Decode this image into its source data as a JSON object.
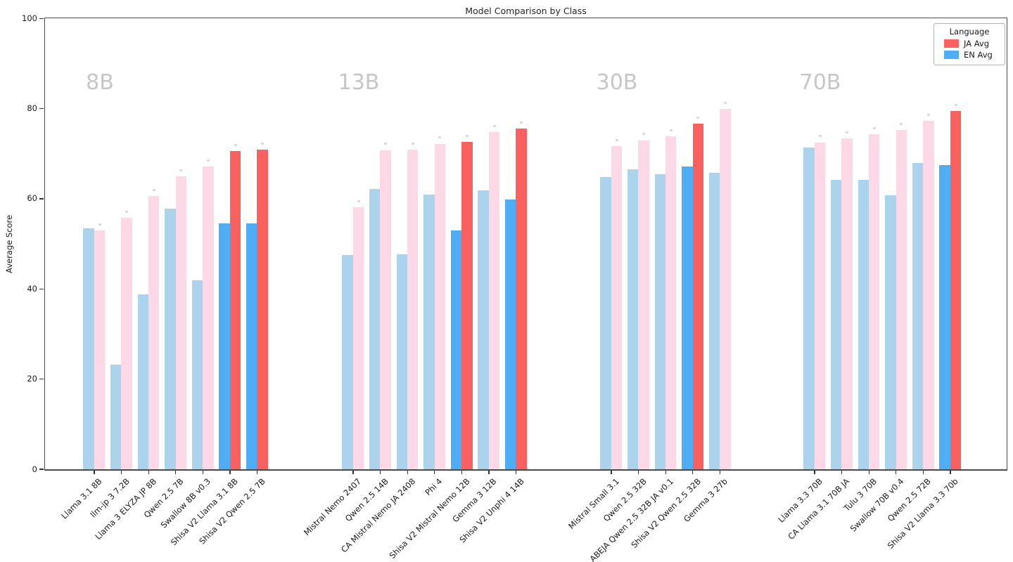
{
  "chart_data": {
    "type": "bar",
    "title": "Model Comparison by Class",
    "xlabel": "",
    "ylabel": "Average Score",
    "ylim": [
      0,
      100
    ],
    "yticks": [
      0,
      20,
      40,
      60,
      80,
      100
    ],
    "grid": false,
    "legend": {
      "title": "Language",
      "position": "upper right",
      "items": [
        {
          "label": "JA Avg",
          "color": "#f96060"
        },
        {
          "label": "EN Avg",
          "color": "#4fadf5"
        }
      ]
    },
    "series_note": "each model has EN Avg (left, blue) and JA Avg (right, red/pink); Shisa V2 models highlighted in saturated colors, others shown faded",
    "colors": {
      "ja_highlight": "#f96060",
      "en_highlight": "#4fadf5",
      "ja_faded": "#fdd9e8",
      "en_faded": "#abd4ec",
      "group_label": "#c6c6c6",
      "marker": "#d9d9d9"
    },
    "groups": [
      {
        "label": "8B",
        "models": [
          {
            "name": "Llama 3.1 8B",
            "en": 53.5,
            "ja": 53.0,
            "highlight": false
          },
          {
            "name": "llm-jp 3 7.2B",
            "en": 23.2,
            "ja": 55.8,
            "highlight": false
          },
          {
            "name": "Llama 3 ELYZA JP 8B",
            "en": 38.8,
            "ja": 60.6,
            "highlight": false
          },
          {
            "name": "Qwen 2.5 7B",
            "en": 57.8,
            "ja": 64.9,
            "highlight": false
          },
          {
            "name": "Swallow 8B v0.3",
            "en": 41.9,
            "ja": 67.1,
            "highlight": false
          },
          {
            "name": "Shisa V2 Llama 3.1 8B",
            "en": 54.5,
            "ja": 70.6,
            "highlight": true
          },
          {
            "name": "Shisa V2 Qwen 2.5 7B",
            "en": 54.5,
            "ja": 70.9,
            "highlight": true
          }
        ]
      },
      {
        "label": "13B",
        "models": [
          {
            "name": "Mistral Nemo 2407",
            "en": 47.6,
            "ja": 58.1,
            "highlight": false
          },
          {
            "name": "Qwen 2.5 14B",
            "en": 62.2,
            "ja": 70.8,
            "highlight": false
          },
          {
            "name": "CA Mistral Nemo JA 2408",
            "en": 47.7,
            "ja": 70.9,
            "highlight": false
          },
          {
            "name": "Phi 4",
            "en": 60.9,
            "ja": 72.2,
            "highlight": false
          },
          {
            "name": "Shisa V2 Mistral Nemo 12B",
            "en": 53.0,
            "ja": 72.6,
            "highlight": true
          },
          {
            "name": "Gemma 3 12B",
            "en": 61.9,
            "ja": 74.8,
            "highlight": false
          },
          {
            "name": "Shisa V2 Unphi 4 14B",
            "en": 59.8,
            "ja": 75.6,
            "highlight": true
          }
        ]
      },
      {
        "label": "30B",
        "models": [
          {
            "name": "Mistral Small 3.1",
            "en": 64.8,
            "ja": 71.7,
            "highlight": false
          },
          {
            "name": "Qwen 2.5 32B",
            "en": 66.5,
            "ja": 73.0,
            "highlight": false
          },
          {
            "name": "ABEJA Qwen 2.5 32B JA v0.1",
            "en": 65.5,
            "ja": 73.9,
            "highlight": false
          },
          {
            "name": "Shisa V2 Qwen 2.5 32B",
            "en": 67.1,
            "ja": 76.7,
            "highlight": true
          },
          {
            "name": "Gemma 3 27b",
            "en": 65.7,
            "ja": 79.9,
            "highlight": false
          }
        ]
      },
      {
        "label": "70B",
        "models": [
          {
            "name": "Llama 3.3 70B",
            "en": 71.3,
            "ja": 72.5,
            "highlight": false
          },
          {
            "name": "CA Llama 3.1 70B JA",
            "en": 64.2,
            "ja": 73.4,
            "highlight": false
          },
          {
            "name": "Tulu 3 70B",
            "en": 64.2,
            "ja": 74.3,
            "highlight": false
          },
          {
            "name": "Swallow 70B v0.4",
            "en": 60.7,
            "ja": 75.3,
            "highlight": false
          },
          {
            "name": "Qwen 2.5 72B",
            "en": 67.9,
            "ja": 77.3,
            "highlight": false
          },
          {
            "name": "Shisa V2 Llama 3.3 70b",
            "en": 67.4,
            "ja": 79.5,
            "highlight": true
          }
        ]
      }
    ]
  }
}
